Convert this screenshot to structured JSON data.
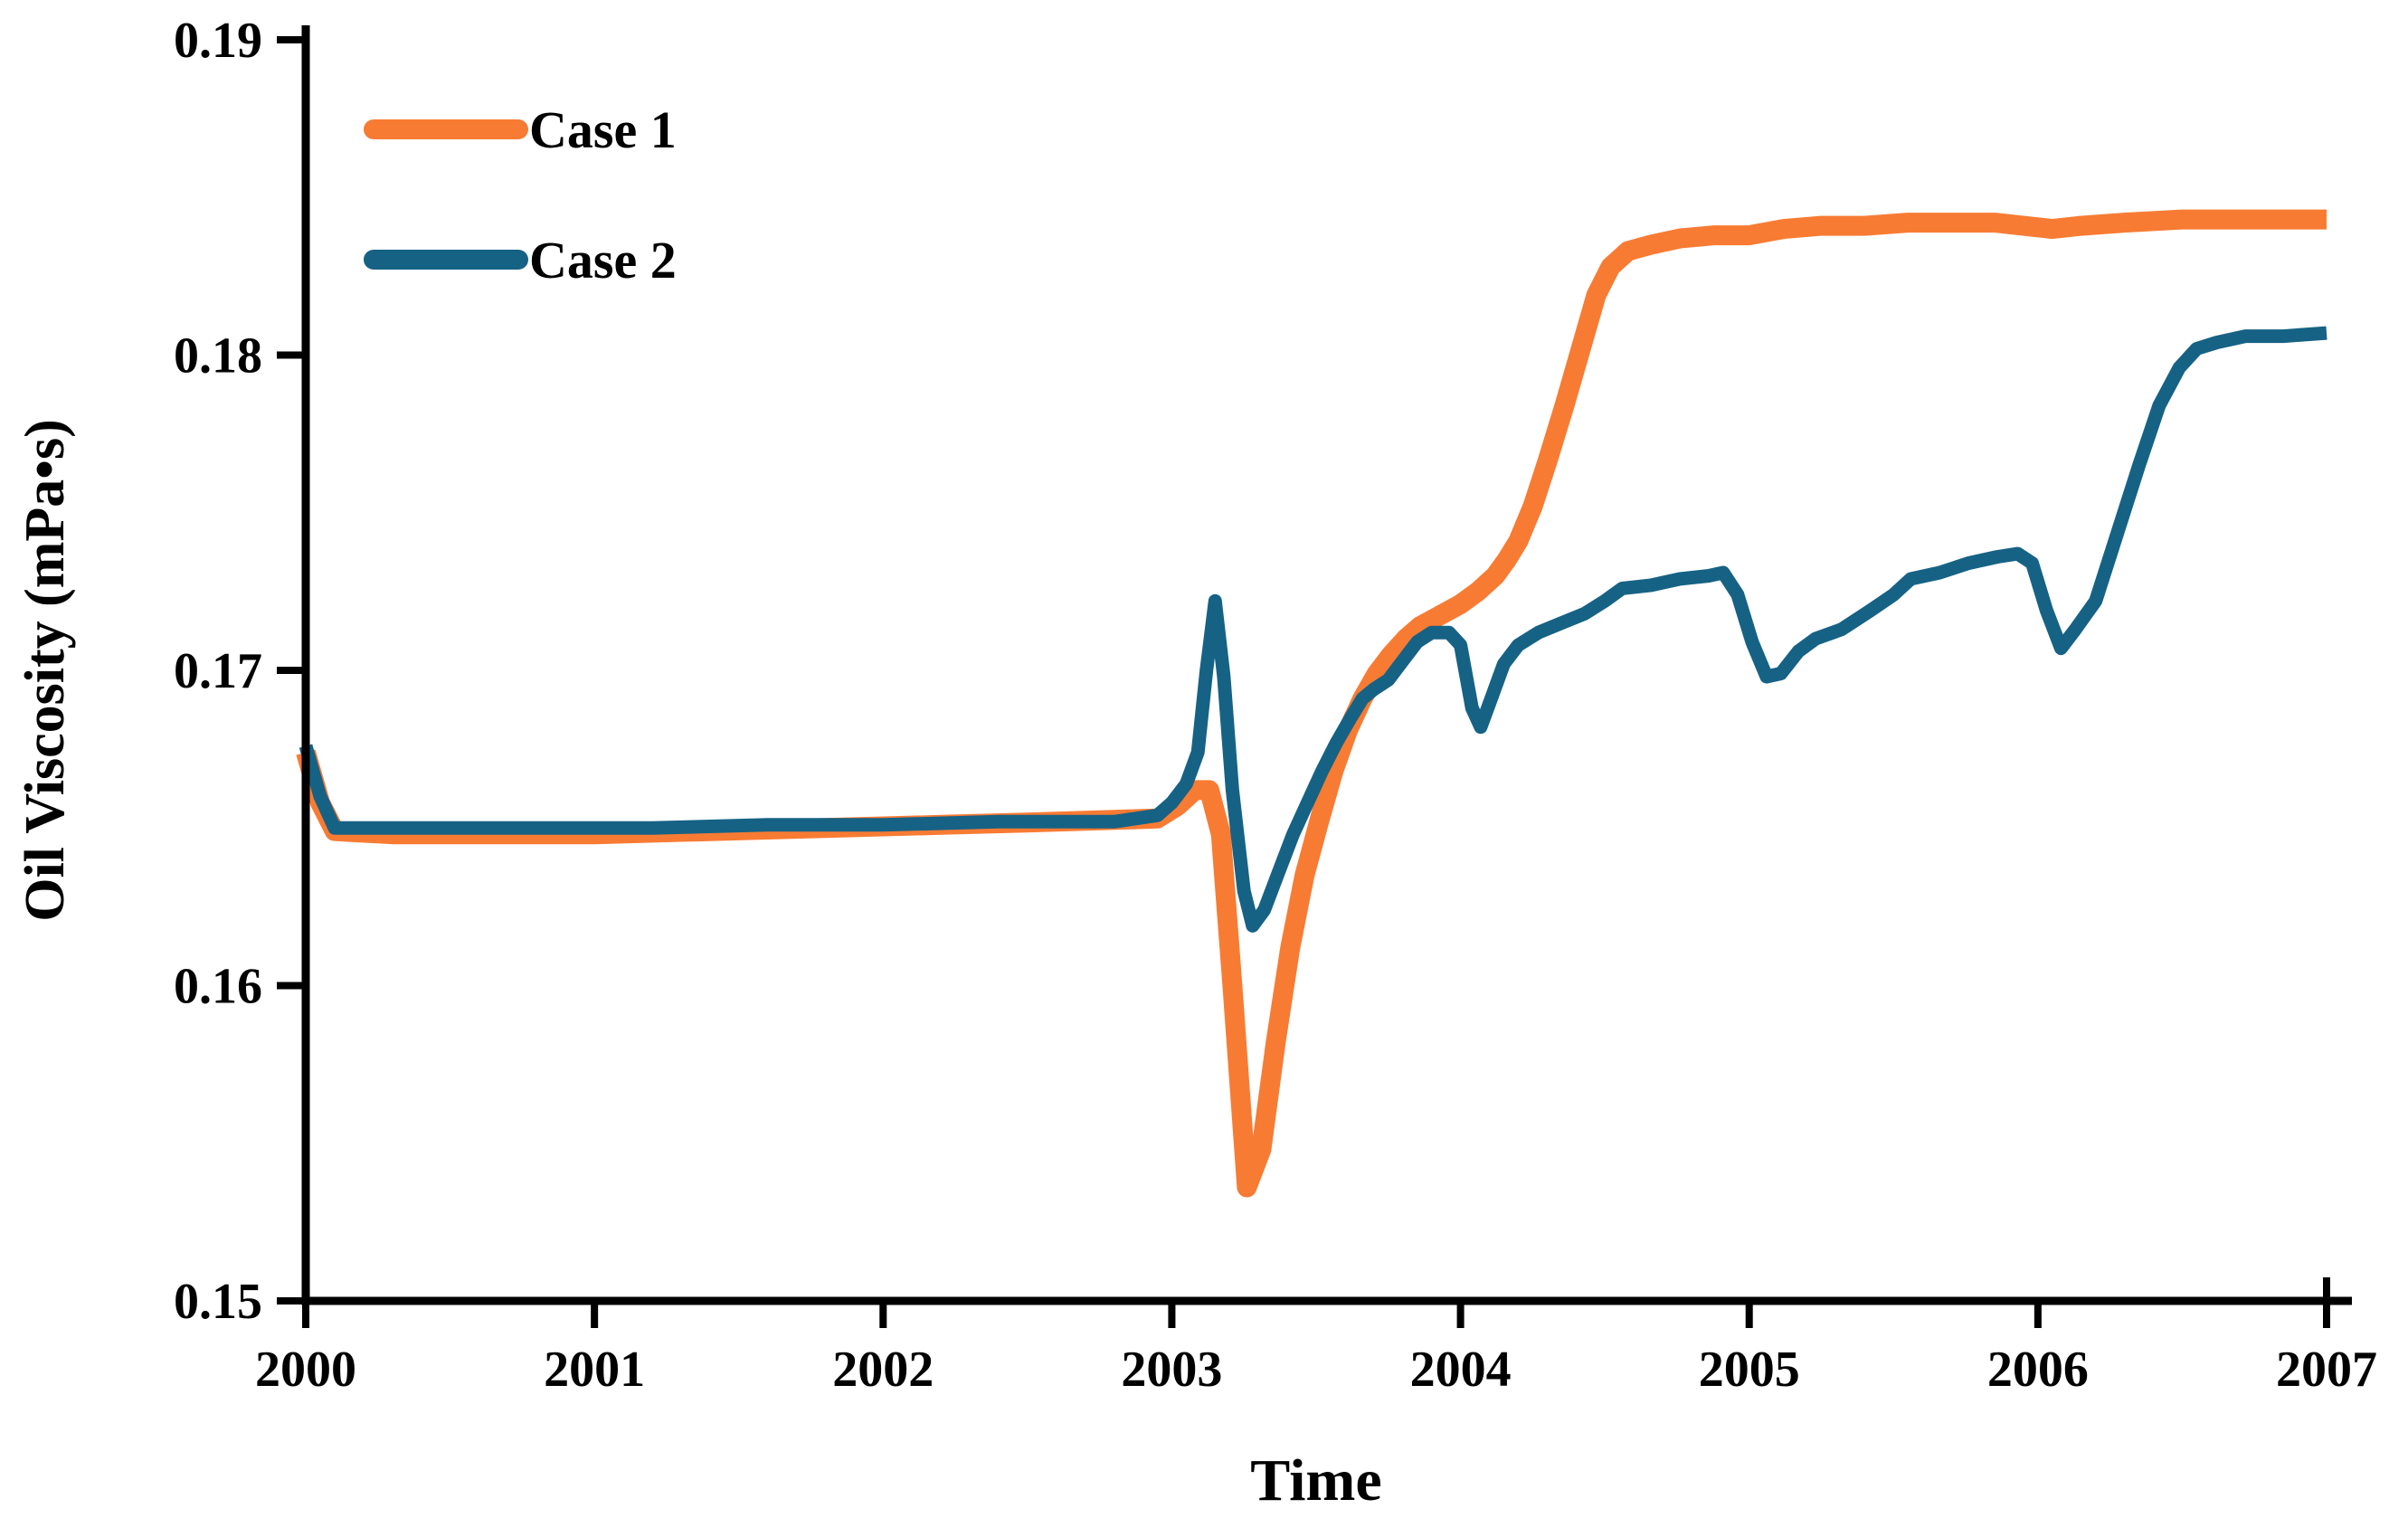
{
  "page": {
    "background": "#ffffff"
  },
  "chart_data": {
    "type": "line",
    "title": "",
    "xlabel": "Time",
    "ylabel": "Oil Viscosity (mPa•s)",
    "xlim": [
      2000,
      2007
    ],
    "ylim": [
      0.15,
      0.19
    ],
    "grid": false,
    "legend_position": "top-left",
    "axis_color": "#000000",
    "x_ticks": [
      2000,
      2001,
      2002,
      2003,
      2004,
      2005,
      2006,
      2007
    ],
    "x_tick_labels": [
      "2000",
      "2001",
      "2002",
      "2003",
      "2004",
      "2005",
      "2006",
      "2007"
    ],
    "y_ticks": [
      0.15,
      0.16,
      0.17,
      0.18,
      0.19
    ],
    "y_tick_labels": [
      "0.15",
      "0.16",
      "0.17",
      "0.18",
      "0.19"
    ],
    "series": [
      {
        "name": "Case 1",
        "color": "#F87B33",
        "stroke_width": 22,
        "points": [
          [
            2000.0,
            0.1674
          ],
          [
            2000.05,
            0.1658
          ],
          [
            2000.1,
            0.1649
          ],
          [
            2000.3,
            0.1648
          ],
          [
            2000.6,
            0.1648
          ],
          [
            2001.0,
            0.1648
          ],
          [
            2001.4,
            0.1649
          ],
          [
            2001.8,
            0.165
          ],
          [
            2002.2,
            0.1651
          ],
          [
            2002.6,
            0.1652
          ],
          [
            2002.95,
            0.1653
          ],
          [
            2003.02,
            0.1657
          ],
          [
            2003.08,
            0.1662
          ],
          [
            2003.13,
            0.1662
          ],
          [
            2003.17,
            0.1648
          ],
          [
            2003.21,
            0.16
          ],
          [
            2003.26,
            0.1536
          ],
          [
            2003.31,
            0.1548
          ],
          [
            2003.36,
            0.1582
          ],
          [
            2003.41,
            0.1612
          ],
          [
            2003.46,
            0.1635
          ],
          [
            2003.51,
            0.1652
          ],
          [
            2003.56,
            0.1668
          ],
          [
            2003.61,
            0.1681
          ],
          [
            2003.66,
            0.1691
          ],
          [
            2003.71,
            0.1699
          ],
          [
            2003.76,
            0.1705
          ],
          [
            2003.81,
            0.171
          ],
          [
            2003.86,
            0.1714
          ],
          [
            2003.92,
            0.1717
          ],
          [
            2004.0,
            0.1721
          ],
          [
            2004.06,
            0.1725
          ],
          [
            2004.12,
            0.173
          ],
          [
            2004.16,
            0.1735
          ],
          [
            2004.2,
            0.1741
          ],
          [
            2004.25,
            0.1752
          ],
          [
            2004.3,
            0.1766
          ],
          [
            2004.36,
            0.1784
          ],
          [
            2004.42,
            0.1803
          ],
          [
            2004.47,
            0.1819
          ],
          [
            2004.52,
            0.1828
          ],
          [
            2004.58,
            0.1833
          ],
          [
            2004.66,
            0.1835
          ],
          [
            2004.76,
            0.1837
          ],
          [
            2004.88,
            0.1838
          ],
          [
            2005.0,
            0.1838
          ],
          [
            2005.12,
            0.184
          ],
          [
            2005.25,
            0.1841
          ],
          [
            2005.4,
            0.1841
          ],
          [
            2005.55,
            0.1842
          ],
          [
            2005.7,
            0.1842
          ],
          [
            2005.85,
            0.1842
          ],
          [
            2005.95,
            0.1841
          ],
          [
            2006.05,
            0.184
          ],
          [
            2006.15,
            0.1841
          ],
          [
            2006.3,
            0.1842
          ],
          [
            2006.5,
            0.1843
          ],
          [
            2006.7,
            0.1843
          ],
          [
            2006.9,
            0.1843
          ],
          [
            2007.0,
            0.1843
          ]
        ]
      },
      {
        "name": "Case 2",
        "color": "#166285",
        "stroke_width": 15,
        "points": [
          [
            2000.0,
            0.1676
          ],
          [
            2000.05,
            0.166
          ],
          [
            2000.1,
            0.165
          ],
          [
            2000.4,
            0.165
          ],
          [
            2000.8,
            0.165
          ],
          [
            2001.2,
            0.165
          ],
          [
            2001.6,
            0.1651
          ],
          [
            2002.0,
            0.1651
          ],
          [
            2002.4,
            0.1652
          ],
          [
            2002.8,
            0.1652
          ],
          [
            2002.95,
            0.1654
          ],
          [
            2003.0,
            0.1658
          ],
          [
            2003.05,
            0.1664
          ],
          [
            2003.09,
            0.1674
          ],
          [
            2003.12,
            0.17
          ],
          [
            2003.15,
            0.1722
          ],
          [
            2003.18,
            0.1698
          ],
          [
            2003.21,
            0.1662
          ],
          [
            2003.25,
            0.163
          ],
          [
            2003.28,
            0.1619
          ],
          [
            2003.32,
            0.1624
          ],
          [
            2003.37,
            0.1636
          ],
          [
            2003.42,
            0.1648
          ],
          [
            2003.47,
            0.1658
          ],
          [
            2003.52,
            0.1668
          ],
          [
            2003.57,
            0.1677
          ],
          [
            2003.62,
            0.1685
          ],
          [
            2003.66,
            0.1691
          ],
          [
            2003.7,
            0.1694
          ],
          [
            2003.75,
            0.1697
          ],
          [
            2003.8,
            0.1703
          ],
          [
            2003.85,
            0.1709
          ],
          [
            2003.9,
            0.1712
          ],
          [
            2003.96,
            0.1712
          ],
          [
            2004.0,
            0.1708
          ],
          [
            2004.04,
            0.1688
          ],
          [
            2004.07,
            0.1682
          ],
          [
            2004.11,
            0.1692
          ],
          [
            2004.15,
            0.1702
          ],
          [
            2004.2,
            0.1708
          ],
          [
            2004.27,
            0.1712
          ],
          [
            2004.35,
            0.1715
          ],
          [
            2004.43,
            0.1718
          ],
          [
            2004.5,
            0.1722
          ],
          [
            2004.56,
            0.1726
          ],
          [
            2004.66,
            0.1727
          ],
          [
            2004.76,
            0.1729
          ],
          [
            2004.86,
            0.173
          ],
          [
            2004.91,
            0.1731
          ],
          [
            2004.96,
            0.1724
          ],
          [
            2005.01,
            0.1709
          ],
          [
            2005.06,
            0.1698
          ],
          [
            2005.11,
            0.1699
          ],
          [
            2005.17,
            0.1706
          ],
          [
            2005.23,
            0.171
          ],
          [
            2005.32,
            0.1713
          ],
          [
            2005.42,
            0.1719
          ],
          [
            2005.5,
            0.1724
          ],
          [
            2005.56,
            0.1729
          ],
          [
            2005.66,
            0.1731
          ],
          [
            2005.76,
            0.1734
          ],
          [
            2005.86,
            0.1736
          ],
          [
            2005.93,
            0.1737
          ],
          [
            2005.98,
            0.1734
          ],
          [
            2006.03,
            0.1719
          ],
          [
            2006.08,
            0.1707
          ],
          [
            2006.13,
            0.1713
          ],
          [
            2006.2,
            0.1722
          ],
          [
            2006.27,
            0.1742
          ],
          [
            2006.35,
            0.1765
          ],
          [
            2006.42,
            0.1784
          ],
          [
            2006.49,
            0.1796
          ],
          [
            2006.55,
            0.1802
          ],
          [
            2006.62,
            0.1804
          ],
          [
            2006.72,
            0.1806
          ],
          [
            2006.85,
            0.1806
          ],
          [
            2007.0,
            0.1807
          ]
        ]
      }
    ]
  }
}
